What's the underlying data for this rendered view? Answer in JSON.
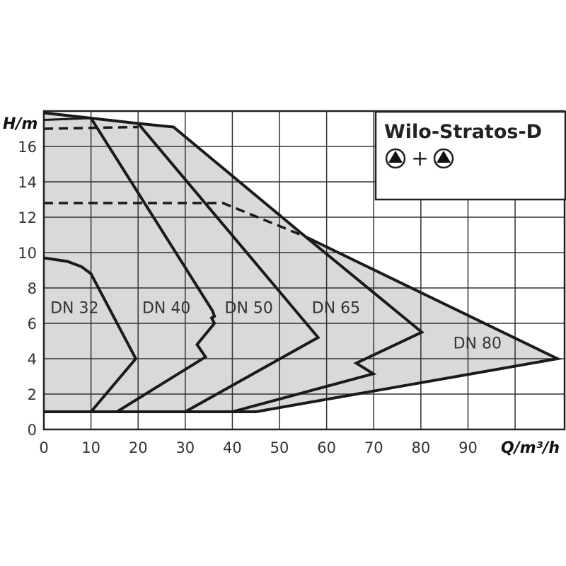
{
  "chart_data": {
    "type": "line",
    "title": "Wilo-Stratos-D",
    "subtitle_symbol": "pump + pump",
    "xlabel": "Q/m³/h",
    "ylabel": "H/m",
    "xlim": [
      0,
      110.5
    ],
    "ylim": [
      0,
      18
    ],
    "grid": true,
    "legend_position": "top-right",
    "x_ticks": [
      "0",
      "10",
      "20",
      "30",
      "40",
      "50",
      "60",
      "70",
      "80",
      "90"
    ],
    "y_ticks": [
      "0",
      "2",
      "4",
      "6",
      "8",
      "10",
      "12",
      "14",
      "16"
    ],
    "colors": {
      "fill": "#d9d9d9",
      "line": "#1a1a1a",
      "grid": "#333333"
    },
    "envelope": [
      [
        0,
        1
      ],
      [
        45,
        1
      ],
      [
        109,
        4
      ],
      [
        55.5,
        10.9
      ],
      [
        27.5,
        17.1
      ],
      [
        20,
        17.3
      ],
      [
        10,
        17.6
      ],
      [
        0,
        17.9
      ]
    ],
    "series": [
      {
        "name": "DN 32",
        "label_at": [
          6.5,
          6.9
        ],
        "points": [
          [
            0,
            9.7
          ],
          [
            5,
            9.5
          ],
          [
            8,
            9.2
          ],
          [
            10,
            8.8
          ],
          [
            19.5,
            4.0
          ],
          [
            10,
            1
          ]
        ]
      },
      {
        "name": "DN 40",
        "label_at": [
          26,
          6.9
        ],
        "points": [
          [
            0,
            17.9
          ],
          [
            10,
            17.6
          ],
          [
            35.8,
            6.7
          ],
          [
            36.2,
            6.4
          ],
          [
            35.6,
            6.3
          ],
          [
            36.2,
            6.0
          ],
          [
            32.5,
            4.8
          ],
          [
            34.3,
            4.1
          ],
          [
            15.5,
            1
          ]
        ]
      },
      {
        "name": "DN 50",
        "label_at": [
          43.5,
          6.9
        ],
        "points": [
          [
            10,
            17.6
          ],
          [
            20,
            17.3
          ],
          [
            58.2,
            5.2
          ],
          [
            30,
            1
          ]
        ]
      },
      {
        "name": "DN 65",
        "label_at": [
          62,
          6.9
        ],
        "points": [
          [
            20,
            17.3
          ],
          [
            27.5,
            17.1
          ],
          [
            55.5,
            10.9
          ],
          [
            80.2,
            5.5
          ],
          [
            66.3,
            3.75
          ],
          [
            69.9,
            3.15
          ],
          [
            40,
            1
          ]
        ]
      },
      {
        "name": "DN 80",
        "label_at": [
          92,
          4.9
        ],
        "points": [
          [
            55.5,
            10.9
          ],
          [
            109,
            4
          ],
          [
            45,
            1
          ],
          [
            0,
            1
          ]
        ]
      }
    ],
    "extra_lines": [
      {
        "style": "solid",
        "points": [
          [
            0,
            17.5
          ],
          [
            10,
            17.6
          ]
        ]
      },
      {
        "style": "dashed",
        "points": [
          [
            0,
            17.0
          ],
          [
            20,
            17.1
          ]
        ]
      },
      {
        "style": "dashed",
        "points": [
          [
            0,
            12.8
          ],
          [
            38,
            12.8
          ],
          [
            55.5,
            10.9
          ]
        ]
      }
    ]
  }
}
